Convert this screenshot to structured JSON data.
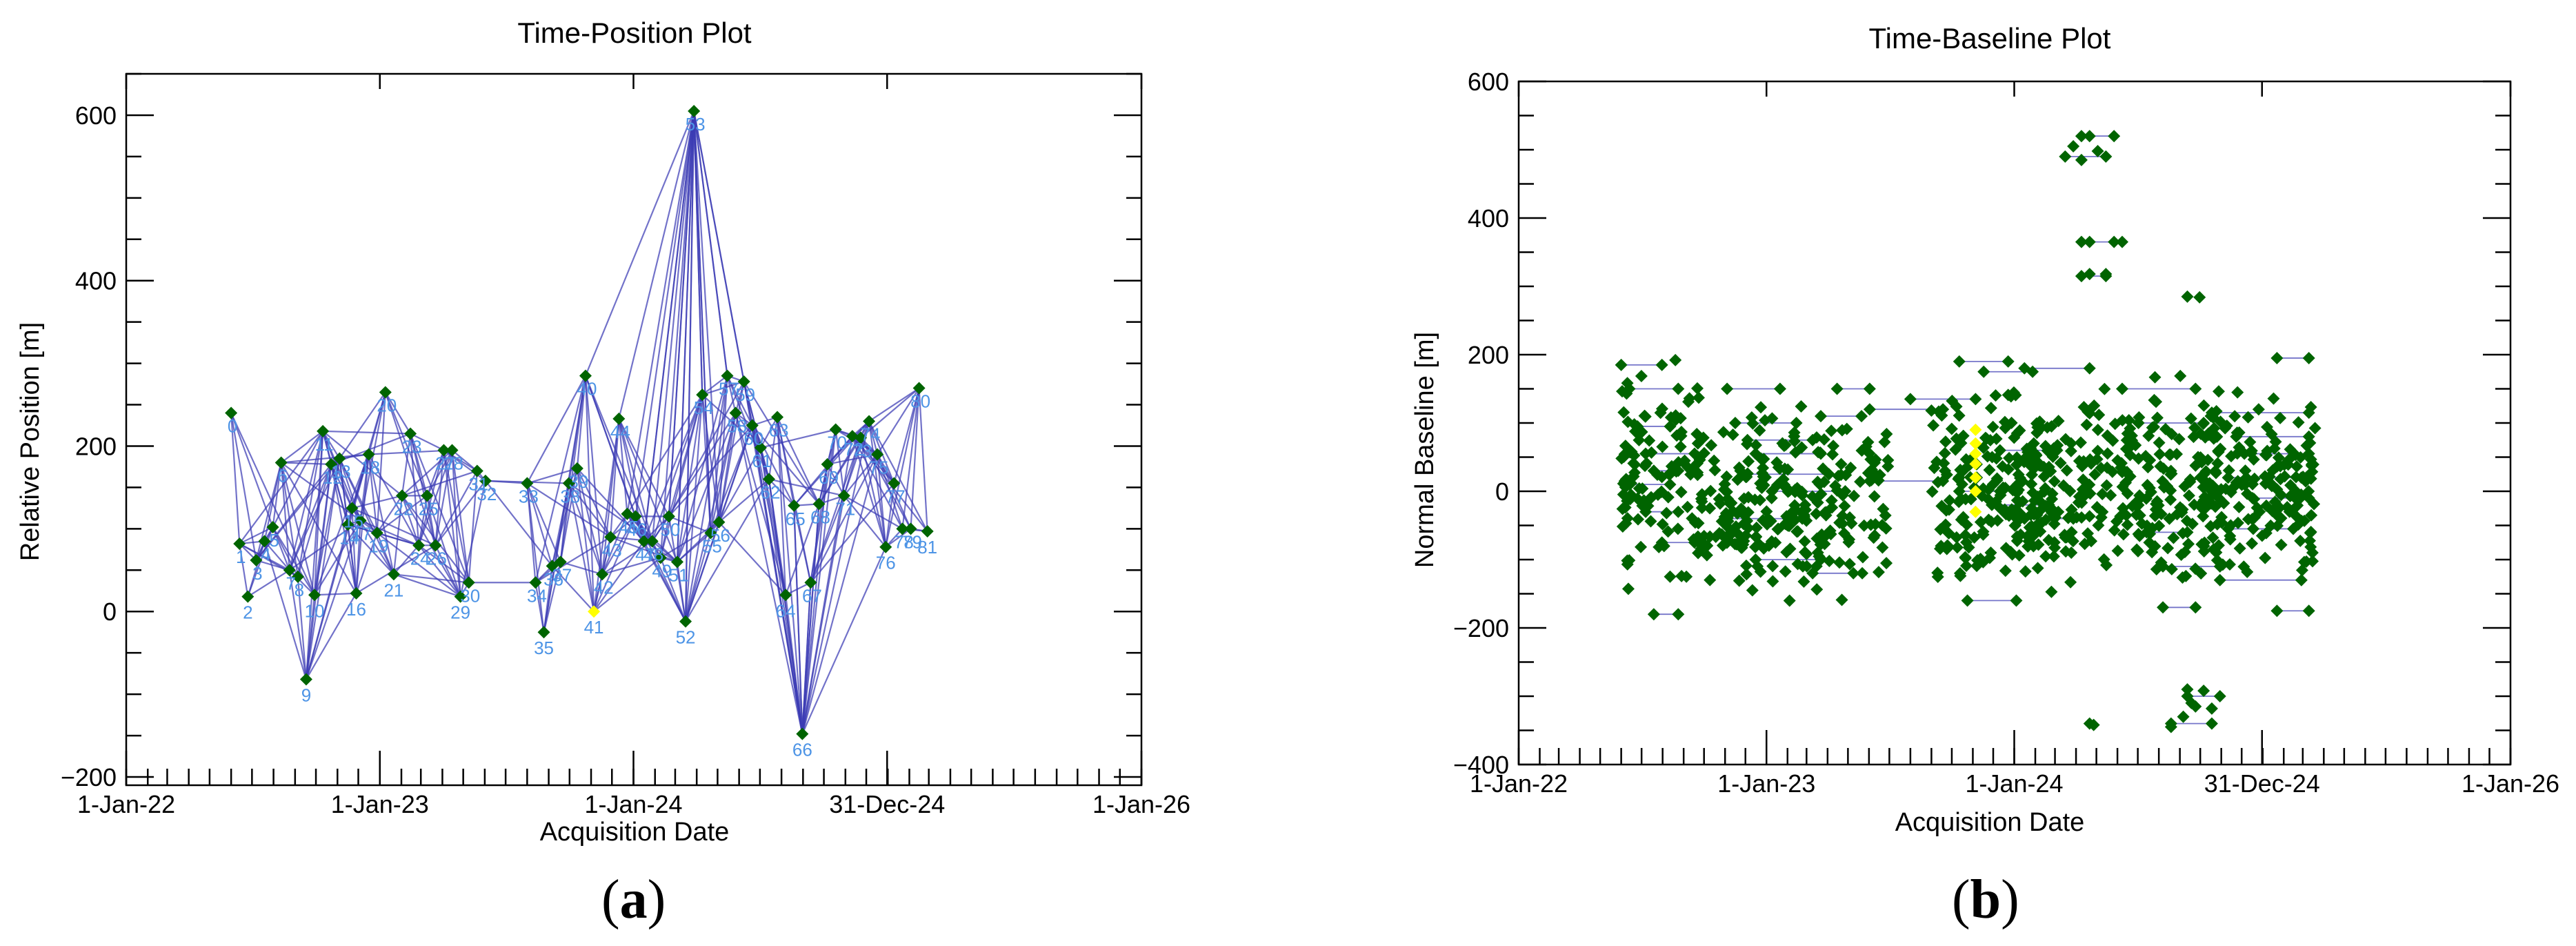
{
  "colors": {
    "point": "#006400",
    "master_point": "#FFFF00",
    "network_line": "#3C3CB4",
    "point_label": "#4D94E6",
    "axis": "#000000"
  },
  "panel_labels": {
    "a": {
      "open": "(",
      "letter": "a",
      "close": ")"
    },
    "b": {
      "open": "(",
      "letter": "b",
      "close": ")"
    }
  },
  "chart_data": [
    {
      "type": "scatter",
      "title": "Time-Position Plot",
      "xlabel": "Acquisition Date",
      "ylabel": "Relative Position [m]",
      "xlim": [
        "2022-01-01",
        "2026-01-01"
      ],
      "ylim": [
        -210,
        650
      ],
      "x_ticks": [
        "2022-01-01",
        "2023-01-01",
        "2024-01-01",
        "2024-12-31",
        "2026-01-01"
      ],
      "x_tick_labels": [
        "1-Jan-22",
        "1-Jan-23",
        "1-Jan-24",
        "31-Dec-24",
        "1-Jan-26"
      ],
      "y_ticks": [
        -200,
        0,
        200,
        400,
        600
      ],
      "y_tick_labels": [
        "−200",
        "0",
        "200",
        "400",
        "600"
      ],
      "master_index": 41,
      "points": [
        {
          "id": 0,
          "date": "2022-06-01",
          "y": 240
        },
        {
          "id": 1,
          "date": "2022-06-13",
          "y": 82
        },
        {
          "id": 2,
          "date": "2022-06-25",
          "y": 18
        },
        {
          "id": 3,
          "date": "2022-07-07",
          "y": 62
        },
        {
          "id": 4,
          "date": "2022-07-19",
          "y": 85
        },
        {
          "id": 5,
          "date": "2022-07-31",
          "y": 102
        },
        {
          "id": 6,
          "date": "2022-08-12",
          "y": 180
        },
        {
          "id": 7,
          "date": "2022-08-24",
          "y": 50
        },
        {
          "id": 8,
          "date": "2022-09-05",
          "y": 42
        },
        {
          "id": 9,
          "date": "2022-09-17",
          "y": -82
        },
        {
          "id": 10,
          "date": "2022-09-29",
          "y": 20
        },
        {
          "id": 11,
          "date": "2022-10-11",
          "y": 218
        },
        {
          "id": 12,
          "date": "2022-10-23",
          "y": 178
        },
        {
          "id": 13,
          "date": "2022-11-04",
          "y": 185
        },
        {
          "id": 14,
          "date": "2022-11-16",
          "y": 105
        },
        {
          "id": 15,
          "date": "2022-11-22",
          "y": 125
        },
        {
          "id": 16,
          "date": "2022-11-28",
          "y": 22
        },
        {
          "id": 17,
          "date": "2022-12-04",
          "y": 110
        },
        {
          "id": 18,
          "date": "2022-12-16",
          "y": 190
        },
        {
          "id": 19,
          "date": "2022-12-28",
          "y": 95
        },
        {
          "id": 20,
          "date": "2023-01-09",
          "y": 265
        },
        {
          "id": 21,
          "date": "2023-01-21",
          "y": 45
        },
        {
          "id": 22,
          "date": "2023-02-02",
          "y": 140
        },
        {
          "id": 23,
          "date": "2023-02-14",
          "y": 215
        },
        {
          "id": 24,
          "date": "2023-02-26",
          "y": 80
        },
        {
          "id": 25,
          "date": "2023-03-10",
          "y": 140
        },
        {
          "id": 26,
          "date": "2023-03-22",
          "y": 80
        },
        {
          "id": 27,
          "date": "2023-04-03",
          "y": 195
        },
        {
          "id": 28,
          "date": "2023-04-15",
          "y": 195
        },
        {
          "id": 29,
          "date": "2023-04-27",
          "y": 18
        },
        {
          "id": 30,
          "date": "2023-05-09",
          "y": 35
        },
        {
          "id": 31,
          "date": "2023-05-21",
          "y": 170
        },
        {
          "id": 32,
          "date": "2023-06-02",
          "y": 158
        },
        {
          "id": 33,
          "date": "2023-08-01",
          "y": 155
        },
        {
          "id": 34,
          "date": "2023-08-13",
          "y": 35
        },
        {
          "id": 35,
          "date": "2023-08-25",
          "y": -25
        },
        {
          "id": 36,
          "date": "2023-09-06",
          "y": 55
        },
        {
          "id": 37,
          "date": "2023-09-18",
          "y": 60
        },
        {
          "id": 38,
          "date": "2023-09-30",
          "y": 155
        },
        {
          "id": 39,
          "date": "2023-10-12",
          "y": 173
        },
        {
          "id": 40,
          "date": "2023-10-24",
          "y": 285
        },
        {
          "id": 41,
          "date": "2023-11-05",
          "y": 0
        },
        {
          "id": 42,
          "date": "2023-11-17",
          "y": 45
        },
        {
          "id": 43,
          "date": "2023-11-29",
          "y": 90
        },
        {
          "id": 44,
          "date": "2023-12-11",
          "y": 233
        },
        {
          "id": 45,
          "date": "2023-12-23",
          "y": 118
        },
        {
          "id": 46,
          "date": "2024-01-04",
          "y": 115
        },
        {
          "id": 47,
          "date": "2024-01-16",
          "y": 85
        },
        {
          "id": 48,
          "date": "2024-01-28",
          "y": 85
        },
        {
          "id": 49,
          "date": "2024-02-09",
          "y": 65
        },
        {
          "id": 50,
          "date": "2024-02-21",
          "y": 115
        },
        {
          "id": 51,
          "date": "2024-03-04",
          "y": 60
        },
        {
          "id": 52,
          "date": "2024-03-16",
          "y": -12
        },
        {
          "id": 53,
          "date": "2024-03-28",
          "y": 605
        },
        {
          "id": 54,
          "date": "2024-04-09",
          "y": 262
        },
        {
          "id": 55,
          "date": "2024-04-21",
          "y": 95
        },
        {
          "id": 56,
          "date": "2024-05-03",
          "y": 108
        },
        {
          "id": 57,
          "date": "2024-05-15",
          "y": 285
        },
        {
          "id": 58,
          "date": "2024-05-27",
          "y": 240
        },
        {
          "id": 59,
          "date": "2024-06-08",
          "y": 278
        },
        {
          "id": 60,
          "date": "2024-06-20",
          "y": 225
        },
        {
          "id": 61,
          "date": "2024-07-02",
          "y": 198
        },
        {
          "id": 62,
          "date": "2024-07-14",
          "y": 160
        },
        {
          "id": 63,
          "date": "2024-07-26",
          "y": 235
        },
        {
          "id": 64,
          "date": "2024-08-07",
          "y": 20
        },
        {
          "id": 65,
          "date": "2024-08-19",
          "y": 128
        },
        {
          "id": 66,
          "date": "2024-08-31",
          "y": -148
        },
        {
          "id": 67,
          "date": "2024-09-12",
          "y": 35
        },
        {
          "id": 68,
          "date": "2024-09-24",
          "y": 130
        },
        {
          "id": 69,
          "date": "2024-10-06",
          "y": 178
        },
        {
          "id": 70,
          "date": "2024-10-18",
          "y": 220
        },
        {
          "id": 71,
          "date": "2024-10-30",
          "y": 140
        },
        {
          "id": 72,
          "date": "2024-11-11",
          "y": 212
        },
        {
          "id": 73,
          "date": "2024-11-23",
          "y": 210
        },
        {
          "id": 74,
          "date": "2024-12-05",
          "y": 230
        },
        {
          "id": 75,
          "date": "2024-12-17",
          "y": 190
        },
        {
          "id": 76,
          "date": "2024-12-29",
          "y": 78
        },
        {
          "id": 77,
          "date": "2025-01-10",
          "y": 155
        },
        {
          "id": 78,
          "date": "2025-01-22",
          "y": 100
        },
        {
          "id": 79,
          "date": "2025-02-03",
          "y": 100
        },
        {
          "id": 80,
          "date": "2025-02-15",
          "y": 270
        },
        {
          "id": 81,
          "date": "2025-02-27",
          "y": 97
        }
      ]
    },
    {
      "type": "scatter",
      "title": "Time-Baseline Plot",
      "xlabel": "Acquisition Date",
      "ylabel": "Normal Baseline [m]",
      "xlim": [
        "2022-01-01",
        "2026-01-01"
      ],
      "ylim": [
        -400,
        600
      ],
      "x_ticks": [
        "2022-01-01",
        "2023-01-01",
        "2024-01-01",
        "2024-12-31",
        "2026-01-01"
      ],
      "x_tick_labels": [
        "1-Jan-22",
        "1-Jan-23",
        "1-Jan-24",
        "31-Dec-24",
        "1-Jan-26"
      ],
      "y_ticks": [
        -400,
        -200,
        0,
        200,
        400,
        600
      ],
      "y_tick_labels": [
        "−400",
        "−200",
        "0",
        "200",
        "400",
        "600"
      ],
      "connector_pairs": [
        [
          "2022-06-01",
          "2022-07-31",
          185
        ],
        [
          "2022-06-13",
          "2022-08-24",
          150
        ],
        [
          "2022-06-25",
          "2022-08-12",
          95
        ],
        [
          "2022-07-07",
          "2022-09-17",
          55
        ],
        [
          "2022-07-19",
          "2022-08-24",
          30
        ],
        [
          "2022-06-13",
          "2022-08-12",
          10
        ],
        [
          "2022-07-07",
          "2022-08-24",
          -30
        ],
        [
          "2022-07-31",
          "2022-09-17",
          -75
        ],
        [
          "2022-08-12",
          "2022-09-05",
          -125
        ],
        [
          "2022-07-19",
          "2022-08-24",
          -180
        ],
        [
          "2022-11-04",
          "2023-01-21",
          150
        ],
        [
          "2022-11-16",
          "2023-02-14",
          100
        ],
        [
          "2022-12-04",
          "2023-03-10",
          75
        ],
        [
          "2022-12-16",
          "2023-03-22",
          55
        ],
        [
          "2022-11-28",
          "2023-04-03",
          25
        ],
        [
          "2023-01-09",
          "2023-04-27",
          0
        ],
        [
          "2022-11-04",
          "2023-02-02",
          -40
        ],
        [
          "2022-12-16",
          "2023-03-22",
          -100
        ],
        [
          "2023-04-15",
          "2023-06-02",
          150
        ],
        [
          "2023-03-22",
          "2023-05-21",
          110
        ],
        [
          "2023-03-10",
          "2023-05-09",
          -120
        ],
        [
          "2023-06-02",
          "2023-09-18",
          120
        ],
        [
          "2023-06-02",
          "2023-09-18",
          15
        ],
        [
          "2023-08-01",
          "2023-11-05",
          135
        ],
        [
          "2023-10-12",
          "2023-12-23",
          190
        ],
        [
          "2023-11-17",
          "2024-01-28",
          175
        ],
        [
          "2023-12-11",
          "2024-03-04",
          60
        ],
        [
          "2023-10-12",
          "2023-12-11",
          0
        ],
        [
          "2023-11-29",
          "2024-02-21",
          -20
        ],
        [
          "2024-01-16",
          "2024-03-28",
          -40
        ],
        [
          "2023-10-24",
          "2024-01-04",
          -160
        ],
        [
          "2024-01-16",
          "2024-04-21",
          180
        ],
        [
          "2024-04-09",
          "2024-05-27",
          520
        ],
        [
          "2024-03-16",
          "2024-05-15",
          490
        ],
        [
          "2024-04-09",
          "2024-06-08",
          365
        ],
        [
          "2024-04-09",
          "2024-05-15",
          315
        ],
        [
          "2024-06-08",
          "2024-09-24",
          150
        ],
        [
          "2024-07-02",
          "2024-10-06",
          100
        ],
        [
          "2024-07-14",
          "2024-09-12",
          -60
        ],
        [
          "2024-08-07",
          "2024-10-30",
          -110
        ],
        [
          "2024-08-07",
          "2024-09-24",
          -170
        ],
        [
          "2024-08-19",
          "2024-10-18",
          -340
        ],
        [
          "2024-09-12",
          "2024-10-30",
          -300
        ],
        [
          "2024-10-18",
          "2025-03-10",
          115
        ],
        [
          "2024-11-23",
          "2025-03-10",
          80
        ],
        [
          "2024-12-05",
          "2025-03-10",
          55
        ],
        [
          "2024-11-11",
          "2025-02-27",
          20
        ],
        [
          "2024-12-17",
          "2025-03-10",
          -10
        ],
        [
          "2024-11-11",
          "2025-02-15",
          -55
        ],
        [
          "2024-10-30",
          "2025-02-27",
          -130
        ],
        [
          "2025-01-22",
          "2025-03-10",
          195
        ],
        [
          "2025-01-22",
          "2025-03-10",
          -175
        ]
      ]
    }
  ]
}
